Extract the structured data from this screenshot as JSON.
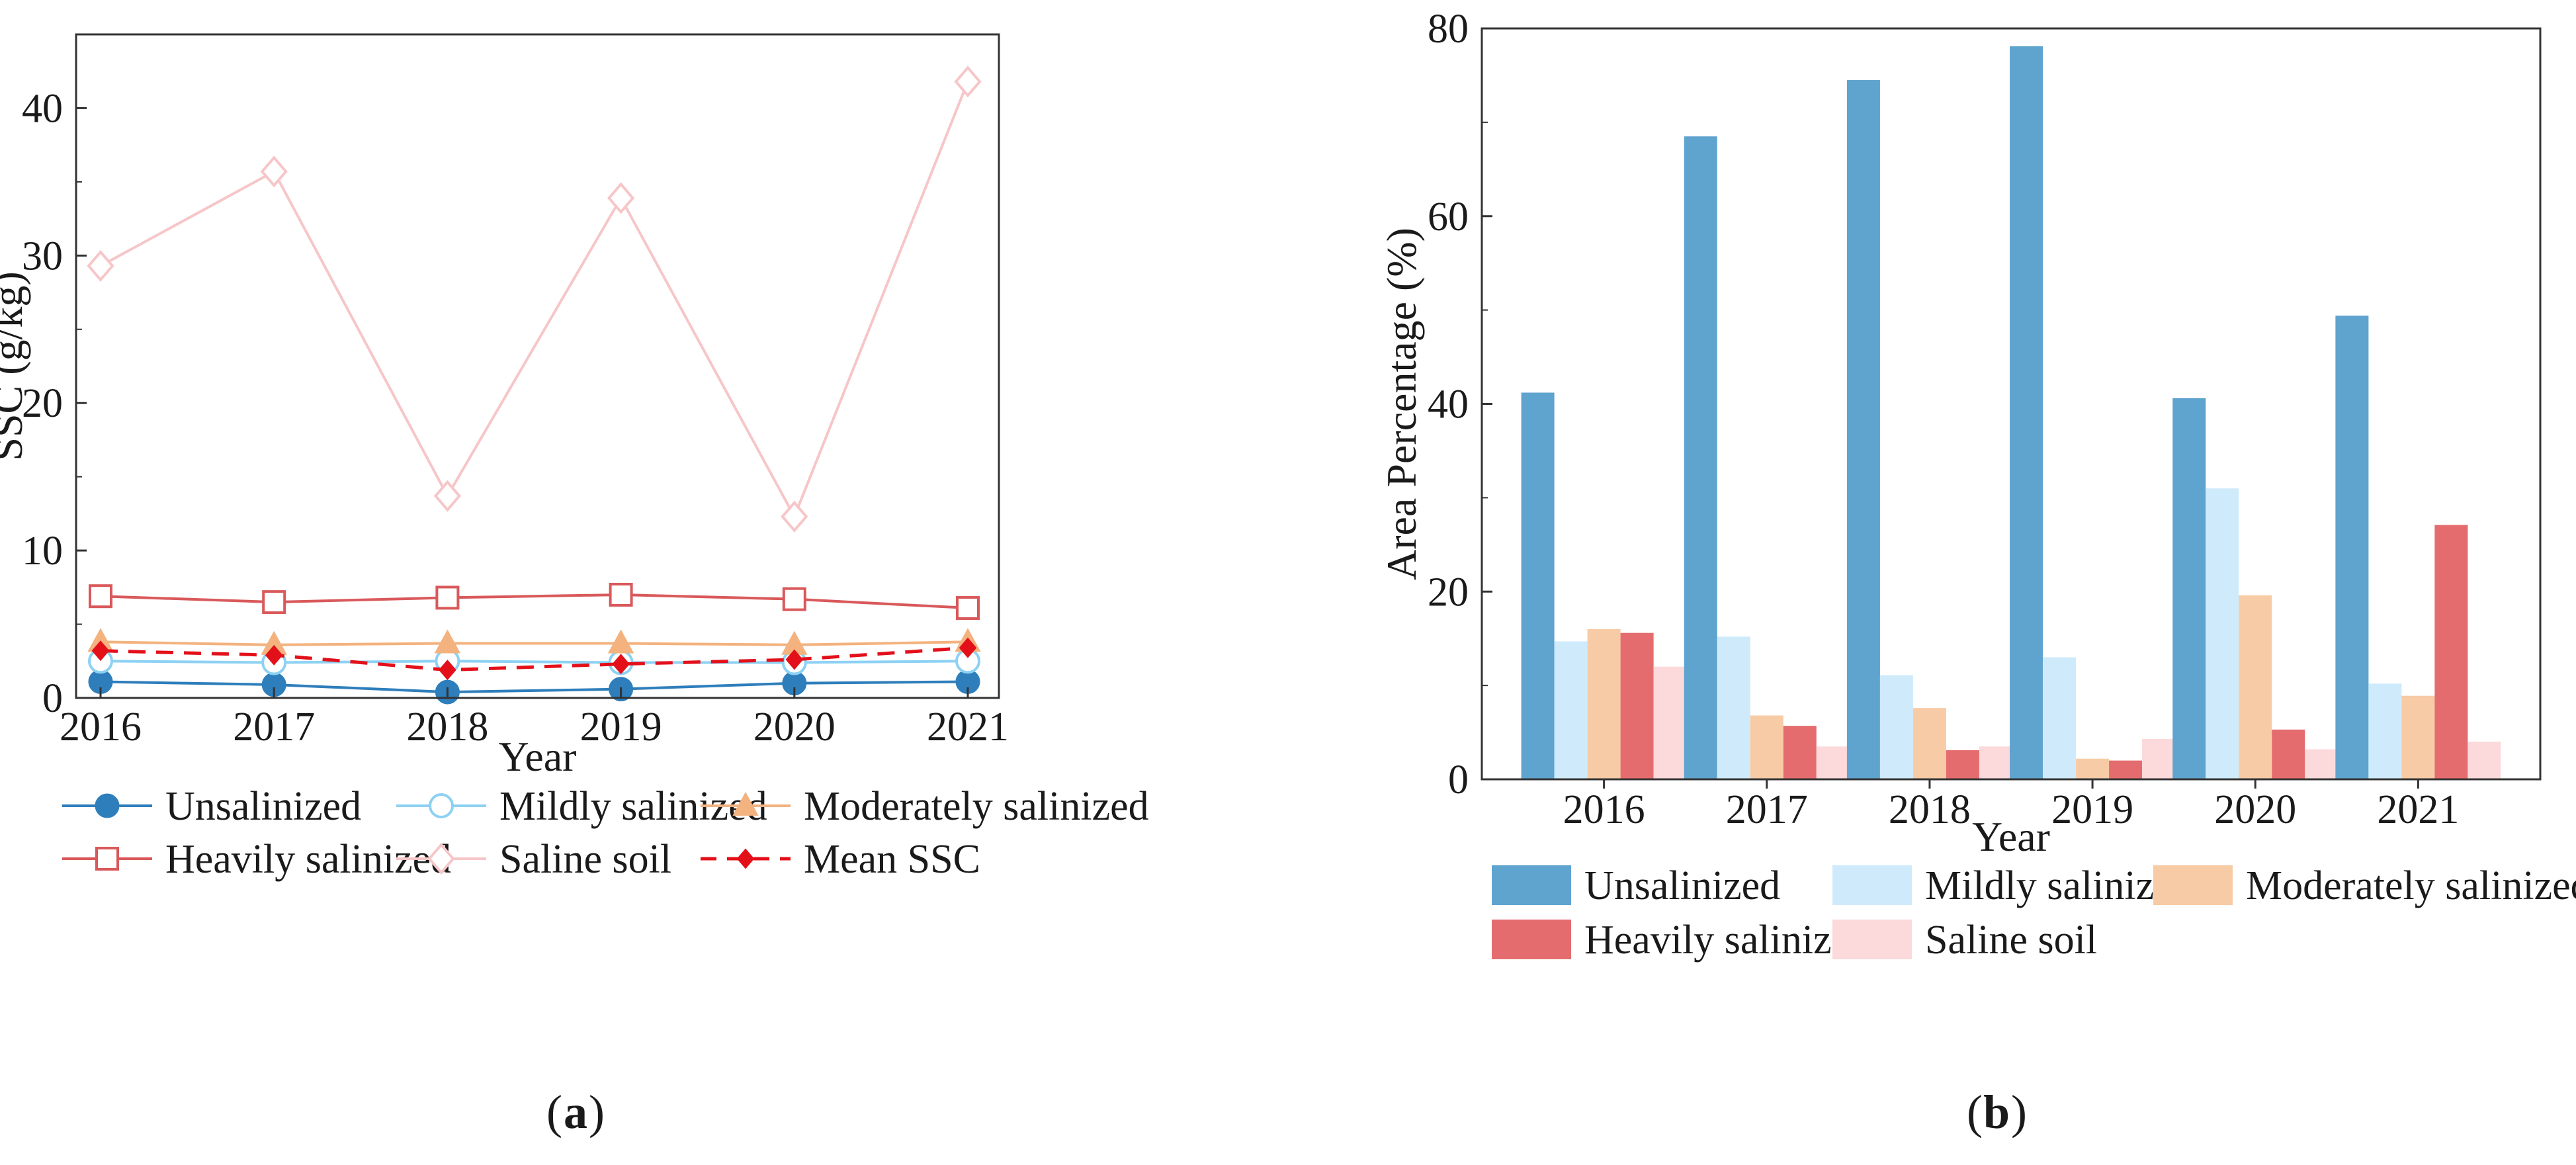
{
  "chart_data": [
    {
      "type": "line",
      "panel_label": "a",
      "xlabel": "Year",
      "ylabel": "SSC (g/kg)",
      "categories": [
        "2016",
        "2017",
        "2018",
        "2019",
        "2020",
        "2021"
      ],
      "ylim": [
        0,
        45
      ],
      "yticks": [
        0,
        10,
        20,
        30,
        40
      ],
      "series": [
        {
          "name": "Unsalinized",
          "color": "#2E7EBB",
          "marker": "circle-filled",
          "dashed": false,
          "values": [
            1.1,
            0.9,
            0.4,
            0.6,
            1.0,
            1.1
          ]
        },
        {
          "name": "Mildly salinized",
          "color": "#8DD1F3",
          "marker": "circle-open",
          "dashed": false,
          "values": [
            2.5,
            2.4,
            2.5,
            2.4,
            2.4,
            2.5
          ]
        },
        {
          "name": "Moderately salinized",
          "color": "#F3B27E",
          "marker": "triangle-filled",
          "dashed": false,
          "values": [
            3.8,
            3.6,
            3.7,
            3.7,
            3.6,
            3.8
          ]
        },
        {
          "name": "Heavily salinized",
          "color": "#D9595B",
          "marker": "square-open",
          "dashed": false,
          "values": [
            6.9,
            6.5,
            6.8,
            7.0,
            6.7,
            6.1
          ]
        },
        {
          "name": "Saline soil",
          "color": "#F6C6C8",
          "marker": "diamond-open",
          "dashed": false,
          "values": [
            29.3,
            35.7,
            13.7,
            33.9,
            12.3,
            41.8
          ]
        },
        {
          "name": "Mean SSC",
          "color": "#E3101A",
          "marker": "diamond-filled",
          "dashed": true,
          "values": [
            3.2,
            2.9,
            1.9,
            2.3,
            2.6,
            3.4
          ]
        }
      ]
    },
    {
      "type": "bar",
      "panel_label": "b",
      "xlabel": "Year",
      "ylabel": "Area Percentage (%)",
      "categories": [
        "2016",
        "2017",
        "2018",
        "2019",
        "2020",
        "2021"
      ],
      "ylim": [
        0,
        80
      ],
      "yticks": [
        0,
        20,
        40,
        60,
        80
      ],
      "series": [
        {
          "name": "Unsalinized",
          "color": "#5FA3CF",
          "values": [
            41.2,
            68.5,
            74.5,
            78.1,
            40.6,
            49.4
          ]
        },
        {
          "name": "Mildly salinized",
          "color": "#CFEBFB",
          "values": [
            14.7,
            15.2,
            11.1,
            13.0,
            31.0,
            10.2
          ]
        },
        {
          "name": "Moderately salinized",
          "color": "#F7CBA5",
          "values": [
            16.0,
            6.8,
            7.6,
            2.2,
            19.6,
            8.9
          ]
        },
        {
          "name": "Heavily salinized",
          "color": "#E46C6E",
          "values": [
            15.6,
            5.7,
            3.1,
            2.0,
            5.3,
            27.1
          ]
        },
        {
          "name": "Saline soil",
          "color": "#FCD9DA",
          "values": [
            12.0,
            3.5,
            3.5,
            4.3,
            3.2,
            4.0
          ]
        }
      ]
    }
  ]
}
